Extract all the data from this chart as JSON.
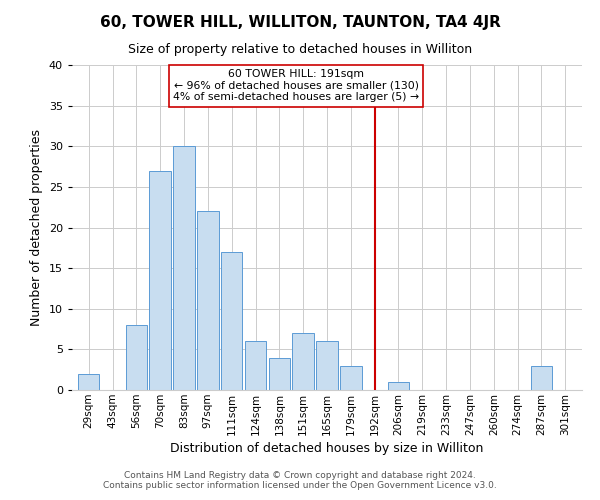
{
  "title": "60, TOWER HILL, WILLITON, TAUNTON, TA4 4JR",
  "subtitle": "Size of property relative to detached houses in Williton",
  "xlabel": "Distribution of detached houses by size in Williton",
  "ylabel": "Number of detached properties",
  "footer_line1": "Contains HM Land Registry data © Crown copyright and database right 2024.",
  "footer_line2": "Contains public sector information licensed under the Open Government Licence v3.0.",
  "bin_labels": [
    "29sqm",
    "43sqm",
    "56sqm",
    "70sqm",
    "83sqm",
    "97sqm",
    "111sqm",
    "124sqm",
    "138sqm",
    "151sqm",
    "165sqm",
    "179sqm",
    "192sqm",
    "206sqm",
    "219sqm",
    "233sqm",
    "247sqm",
    "260sqm",
    "274sqm",
    "287sqm",
    "301sqm"
  ],
  "bar_heights": [
    2,
    0,
    8,
    27,
    30,
    22,
    17,
    6,
    4,
    7,
    6,
    3,
    0,
    1,
    0,
    0,
    0,
    0,
    0,
    3,
    0
  ],
  "bar_color": "#c8ddf0",
  "bar_edge_color": "#5b9bd5",
  "vline_x_index": 12,
  "vline_color": "#cc0000",
  "annotation_title": "60 TOWER HILL: 191sqm",
  "annotation_line1": "← 96% of detached houses are smaller (130)",
  "annotation_line2": "4% of semi-detached houses are larger (5) →",
  "annotation_box_color": "#ffffff",
  "annotation_box_edge": "#cc0000",
  "ylim": [
    0,
    40
  ],
  "yticks": [
    0,
    5,
    10,
    15,
    20,
    25,
    30,
    35,
    40
  ],
  "grid_color": "#cccccc",
  "background_color": "#ffffff",
  "title_fontsize": 11,
  "subtitle_fontsize": 9,
  "ylabel_fontsize": 9,
  "xlabel_fontsize": 9,
  "tick_fontsize": 8,
  "footer_fontsize": 6.5
}
